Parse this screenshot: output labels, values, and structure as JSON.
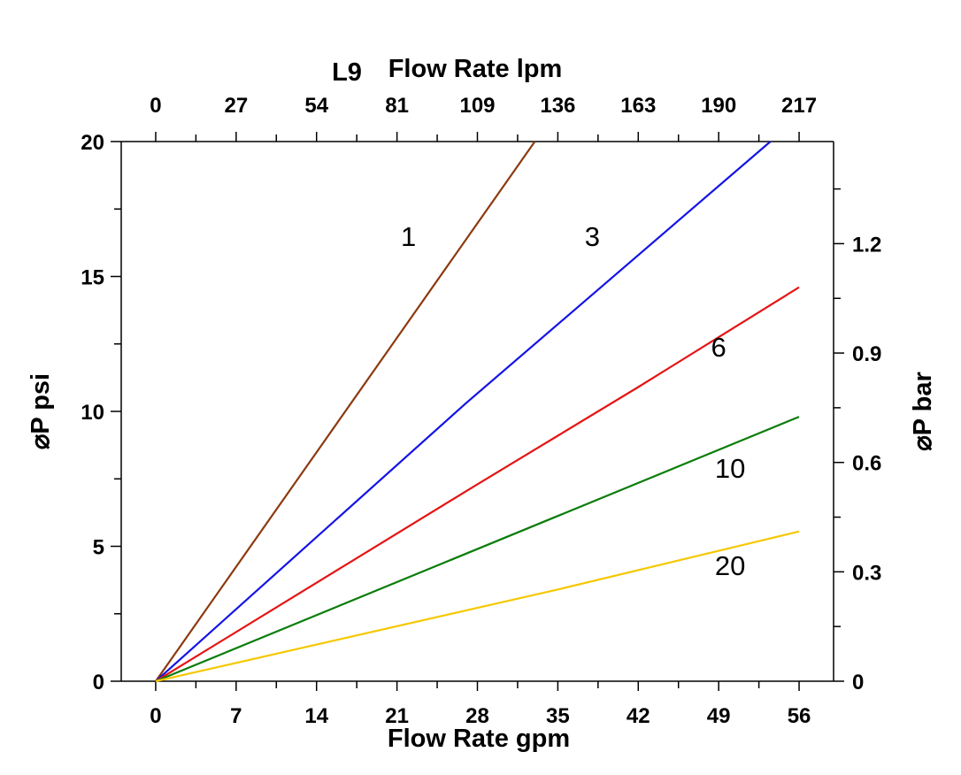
{
  "chart_data": {
    "type": "line",
    "title_prefix": "L9",
    "x_top_label": "Flow Rate lpm",
    "x_bottom_label": "Flow Rate gpm",
    "y_left_label": "⌀P psi",
    "y_right_label": "⌀P bar",
    "x_bottom_ticks": [
      "0",
      "7",
      "14",
      "21",
      "28",
      "35",
      "42",
      "49",
      "56"
    ],
    "x_top_ticks": [
      "0",
      "27",
      "54",
      "81",
      "109",
      "136",
      "163",
      "190",
      "217"
    ],
    "y_left_ticks": [
      "0",
      "5",
      "10",
      "15",
      "20"
    ],
    "y_right_ticks": [
      "0",
      "0.3",
      "0.6",
      "0.9",
      "1.2"
    ],
    "xlim": [
      -3,
      59
    ],
    "ylim": [
      0,
      20
    ],
    "y_right_lim": [
      0,
      1.48
    ],
    "grid": false,
    "series": [
      {
        "name": "1",
        "color": "#8B3A0F",
        "x": [
          0,
          33
        ],
        "y": [
          0,
          20
        ]
      },
      {
        "name": "3",
        "color": "#1414E6",
        "x": [
          0,
          27,
          53.5
        ],
        "y": [
          0,
          10.3,
          20
        ]
      },
      {
        "name": "6",
        "color": "#E61414",
        "x": [
          0,
          28,
          35,
          42,
          56
        ],
        "y": [
          0,
          7.3,
          9.1,
          10.9,
          14.6
        ]
      },
      {
        "name": "10",
        "color": "#0A7D0A",
        "x": [
          0,
          56
        ],
        "y": [
          0,
          9.8
        ]
      },
      {
        "name": "20",
        "color": "#F5C800",
        "x": [
          0,
          35,
          56
        ],
        "y": [
          0,
          3.4,
          5.55
        ]
      }
    ]
  }
}
